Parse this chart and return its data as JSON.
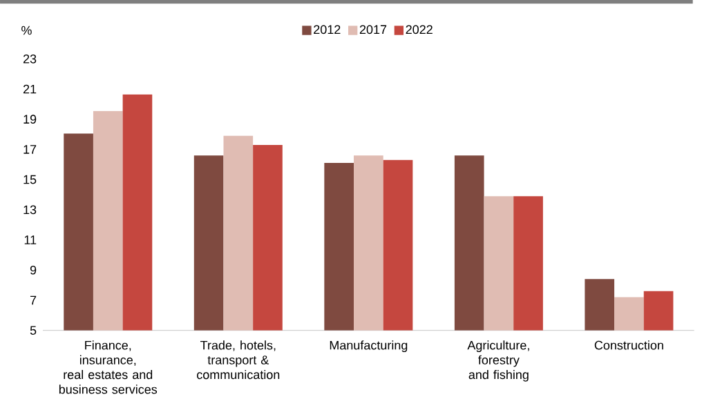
{
  "chart_data": {
    "type": "bar",
    "ylabel": "%",
    "categories": [
      "Finance, insurance, real estates and business services",
      "Trade, hotels, transport & communication",
      "Manufacturing",
      "Agriculture, forestry and fishing",
      "Construction"
    ],
    "series": [
      {
        "name": "2012",
        "color": "#7f4a40",
        "values": [
          18.05,
          16.6,
          16.1,
          16.6,
          8.4
        ]
      },
      {
        "name": "2017",
        "color": "#e0bcb3",
        "values": [
          19.55,
          17.9,
          16.6,
          13.9,
          7.2
        ]
      },
      {
        "name": "2022",
        "color": "#c5473f",
        "values": [
          20.65,
          17.3,
          16.3,
          13.9,
          7.6
        ]
      }
    ],
    "ylim": [
      5,
      23
    ],
    "yticks": [
      5,
      7,
      9,
      11,
      13,
      15,
      17,
      19,
      21,
      23
    ],
    "legend": "top"
  }
}
